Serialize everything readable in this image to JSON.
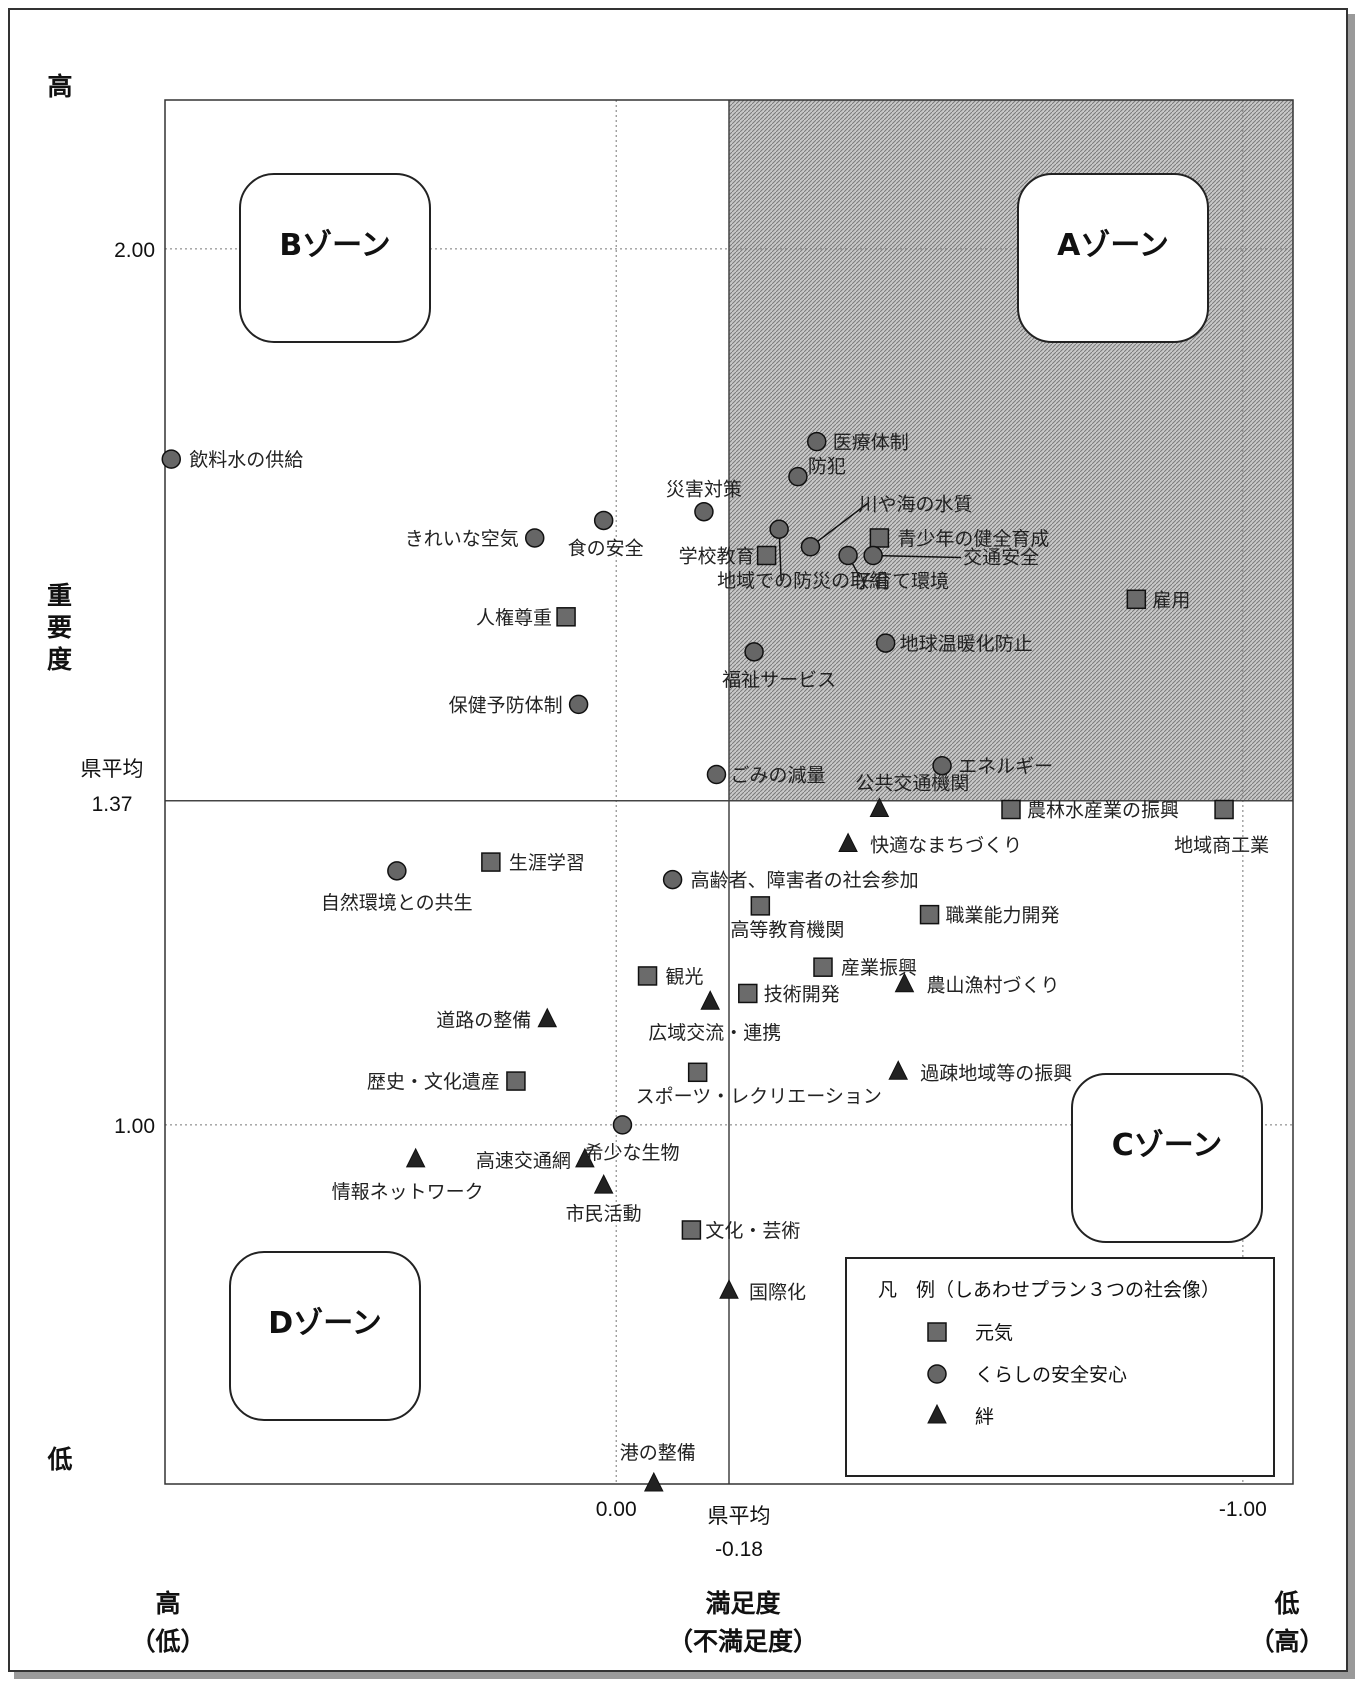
{
  "chart_data": {
    "type": "scatter",
    "x_axis": {
      "label": "満足度",
      "label_sub": "（不満足度）",
      "left_end": "高",
      "left_end_sub": "（低）",
      "right_end": "低",
      "right_end_sub": "（高）",
      "reversed": true,
      "xlim": [
        0.72,
        -1.08
      ],
      "ticks": [
        {
          "value": 0.0,
          "label": "0.00"
        },
        {
          "value": -1.0,
          "label": "-1.00"
        }
      ],
      "mean": {
        "value": -0.18,
        "label": "県平均",
        "value_label": "-0.18"
      }
    },
    "y_axis": {
      "label": "重要度",
      "top_end": "高",
      "bottom_end": "低",
      "ylim": [
        0.59,
        2.17
      ],
      "ticks": [
        {
          "value": 2.0,
          "label": "2.00"
        },
        {
          "value": 1.0,
          "label": "1.00"
        }
      ],
      "mean": {
        "value": 1.37,
        "label": "県平均",
        "value_label": "1.37"
      }
    },
    "grid": true,
    "zones": [
      {
        "id": "A",
        "label": "Aゾーン",
        "quadrant": "top-right",
        "shaded": true
      },
      {
        "id": "B",
        "label": "Bゾーン",
        "quadrant": "top-left",
        "shaded": false
      },
      {
        "id": "C",
        "label": "Cゾーン",
        "quadrant": "bottom-right",
        "shaded": false
      },
      {
        "id": "D",
        "label": "Dゾーン",
        "quadrant": "bottom-left",
        "shaded": false
      }
    ],
    "legend": {
      "title": "凡　例（しあわせプラン３つの社会像）",
      "position": "bottom-right",
      "entries": [
        {
          "marker": "square",
          "label": "元気"
        },
        {
          "marker": "circle",
          "label": "くらしの安全安心"
        },
        {
          "marker": "triangle",
          "label": "絆"
        }
      ]
    },
    "series": [
      {
        "name": "元気",
        "marker": "square",
        "points": [
          {
            "label": "青少年の健全育成",
            "x": -0.42,
            "y": 1.67
          },
          {
            "label": "学校教育",
            "x": -0.24,
            "y": 1.65
          },
          {
            "label": "雇用",
            "x": -0.83,
            "y": 1.6
          },
          {
            "label": "人権尊重",
            "x": 0.08,
            "y": 1.58
          },
          {
            "label": "農林水産業の振興",
            "x": -0.63,
            "y": 1.36
          },
          {
            "label": "地域商工業",
            "x": -0.97,
            "y": 1.36
          },
          {
            "label": "生涯学習",
            "x": 0.2,
            "y": 1.3
          },
          {
            "label": "高等教育機関",
            "x": -0.23,
            "y": 1.25
          },
          {
            "label": "職業能力開発",
            "x": -0.5,
            "y": 1.24
          },
          {
            "label": "産業振興",
            "x": -0.33,
            "y": 1.18
          },
          {
            "label": "観光",
            "x": -0.05,
            "y": 1.17
          },
          {
            "label": "技術開発",
            "x": -0.21,
            "y": 1.15
          },
          {
            "label": "歴史・文化遺産",
            "x": 0.16,
            "y": 1.05
          },
          {
            "label": "スポーツ・レクリエーション",
            "x": -0.13,
            "y": 1.06
          },
          {
            "label": "文化・芸術",
            "x": -0.12,
            "y": 0.88
          }
        ]
      },
      {
        "name": "くらしの安全安心",
        "marker": "circle",
        "points": [
          {
            "label": "飲料水の供給",
            "x": 0.71,
            "y": 1.76
          },
          {
            "label": "医療体制",
            "x": -0.32,
            "y": 1.78
          },
          {
            "label": "防犯",
            "x": -0.29,
            "y": 1.74
          },
          {
            "label": "災害対策",
            "x": -0.14,
            "y": 1.7
          },
          {
            "label": "川や海の水質",
            "x": -0.31,
            "y": 1.66
          },
          {
            "label": "地域での防災の取組",
            "x": -0.26,
            "y": 1.68
          },
          {
            "label": "食の安全",
            "x": 0.02,
            "y": 1.69
          },
          {
            "label": "きれいな空気",
            "x": 0.13,
            "y": 1.67
          },
          {
            "label": "交通安全",
            "x": -0.41,
            "y": 1.65
          },
          {
            "label": "子育て環境",
            "x": -0.37,
            "y": 1.65
          },
          {
            "label": "地球温暖化防止",
            "x": -0.43,
            "y": 1.55
          },
          {
            "label": "福祉サービス",
            "x": -0.22,
            "y": 1.54
          },
          {
            "label": "保健予防体制",
            "x": 0.06,
            "y": 1.48
          },
          {
            "label": "エネルギー",
            "x": -0.52,
            "y": 1.41
          },
          {
            "label": "ごみの減量",
            "x": -0.16,
            "y": 1.4
          },
          {
            "label": "自然環境との共生",
            "x": 0.35,
            "y": 1.29
          },
          {
            "label": "高齢者、障害者の社会参加",
            "x": -0.09,
            "y": 1.28
          },
          {
            "label": "希少な生物",
            "x": -0.01,
            "y": 1.0
          }
        ]
      },
      {
        "name": "絆",
        "marker": "triangle",
        "points": [
          {
            "label": "公共交通機関",
            "x": -0.42,
            "y": 1.36
          },
          {
            "label": "快適なまちづくり",
            "x": -0.37,
            "y": 1.32
          },
          {
            "label": "農山漁村づくり",
            "x": -0.46,
            "y": 1.16
          },
          {
            "label": "広域交流・連携",
            "x": -0.15,
            "y": 1.14
          },
          {
            "label": "道路の整備",
            "x": 0.11,
            "y": 1.12
          },
          {
            "label": "過疎地域等の振興",
            "x": -0.45,
            "y": 1.06
          },
          {
            "label": "情報ネットワーク",
            "x": 0.32,
            "y": 0.96
          },
          {
            "label": "高速交通網",
            "x": 0.05,
            "y": 0.96
          },
          {
            "label": "市民活動",
            "x": 0.02,
            "y": 0.93
          },
          {
            "label": "国際化",
            "x": -0.18,
            "y": 0.81
          },
          {
            "label": "港の整備",
            "x": -0.06,
            "y": 0.59
          }
        ]
      }
    ]
  }
}
